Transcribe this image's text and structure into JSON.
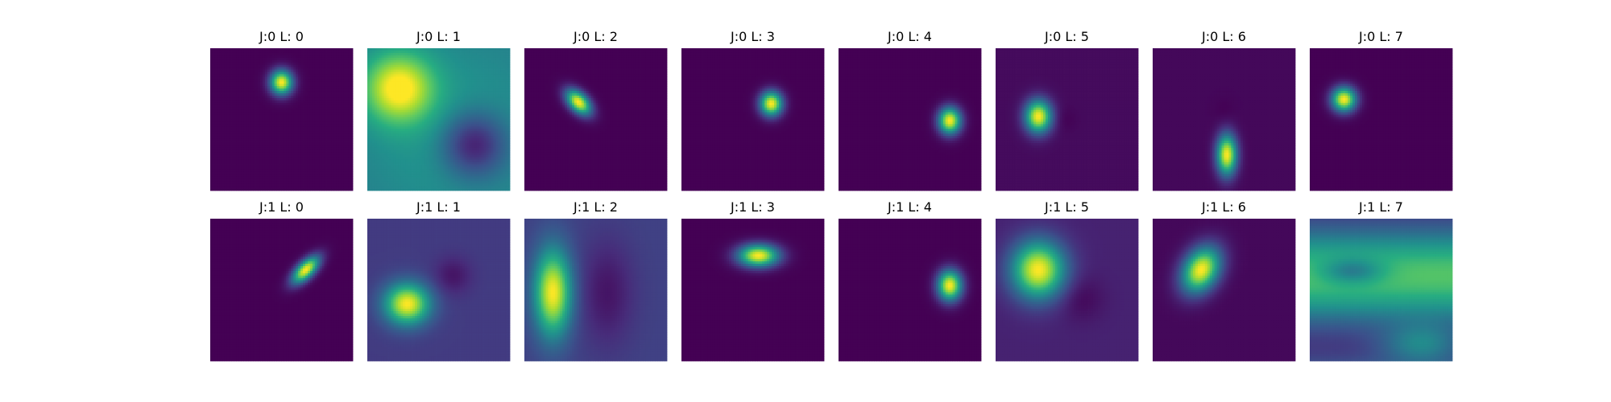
{
  "chart_data": {
    "type": "heatmap",
    "colormap": "viridis",
    "rows": 2,
    "cols": 8,
    "panels": [
      {
        "title": "J:0 L: 0",
        "background": 0.0,
        "blobs": [
          {
            "cx": 0.5,
            "cy": 0.24,
            "sx": 0.055,
            "sy": 0.06,
            "angle": 0,
            "amp": 1.0
          }
        ]
      },
      {
        "title": "J:0 L: 1",
        "background": 0.42,
        "blobs": [
          {
            "cx": 0.22,
            "cy": 0.28,
            "sx": 0.17,
            "sy": 0.17,
            "angle": 0,
            "amp": 0.58
          },
          {
            "cx": 0.6,
            "cy": 0.6,
            "sx": 0.45,
            "sy": 0.45,
            "angle": 0,
            "amp": 0.12
          },
          {
            "cx": 0.75,
            "cy": 0.68,
            "sx": 0.16,
            "sy": 0.16,
            "angle": 0,
            "amp": -0.42
          }
        ]
      },
      {
        "title": "J:0 L: 2",
        "background": 0.0,
        "blobs": [
          {
            "cx": 0.38,
            "cy": 0.38,
            "sx": 0.045,
            "sy": 0.075,
            "angle": -45,
            "amp": 1.0
          }
        ]
      },
      {
        "title": "J:0 L: 3",
        "background": 0.0,
        "blobs": [
          {
            "cx": 0.63,
            "cy": 0.39,
            "sx": 0.055,
            "sy": 0.06,
            "angle": 0,
            "amp": 1.0
          }
        ]
      },
      {
        "title": "J:0 L: 4",
        "background": 0.0,
        "blobs": [
          {
            "cx": 0.78,
            "cy": 0.51,
            "sx": 0.055,
            "sy": 0.065,
            "angle": 0,
            "amp": 1.0
          }
        ]
      },
      {
        "title": "J:0 L: 5",
        "background": 0.03,
        "blobs": [
          {
            "cx": 0.3,
            "cy": 0.48,
            "sx": 0.065,
            "sy": 0.08,
            "angle": 0,
            "amp": 0.97
          },
          {
            "cx": 0.48,
            "cy": 0.5,
            "sx": 0.06,
            "sy": 0.06,
            "angle": 0,
            "amp": -0.03
          }
        ]
      },
      {
        "title": "J:0 L: 6",
        "background": 0.02,
        "blobs": [
          {
            "cx": 0.52,
            "cy": 0.75,
            "sx": 0.05,
            "sy": 0.1,
            "angle": 0,
            "amp": 0.98
          },
          {
            "cx": 0.5,
            "cy": 0.44,
            "sx": 0.05,
            "sy": 0.06,
            "angle": 0,
            "amp": -0.02
          }
        ]
      },
      {
        "title": "J:0 L: 7",
        "background": 0.0,
        "blobs": [
          {
            "cx": 0.24,
            "cy": 0.36,
            "sx": 0.06,
            "sy": 0.06,
            "angle": 0,
            "amp": 1.0
          }
        ]
      },
      {
        "title": "J:1 L: 0",
        "background": 0.0,
        "blobs": [
          {
            "cx": 0.67,
            "cy": 0.36,
            "sx": 0.04,
            "sy": 0.085,
            "angle": 45,
            "amp": 1.0
          }
        ]
      },
      {
        "title": "J:1 L: 1",
        "background": 0.18,
        "blobs": [
          {
            "cx": 0.28,
            "cy": 0.6,
            "sx": 0.11,
            "sy": 0.1,
            "angle": 0,
            "amp": 0.82
          },
          {
            "cx": 0.6,
            "cy": 0.4,
            "sx": 0.09,
            "sy": 0.09,
            "angle": 0,
            "amp": -0.12
          }
        ]
      },
      {
        "title": "J:1 L: 2",
        "background": 0.2,
        "blobs": [
          {
            "cx": 0.2,
            "cy": 0.52,
            "sx": 0.09,
            "sy": 0.21,
            "angle": 0,
            "amp": 0.8
          },
          {
            "cx": 0.58,
            "cy": 0.52,
            "sx": 0.13,
            "sy": 0.25,
            "angle": 0,
            "amp": -0.14
          }
        ]
      },
      {
        "title": "J:1 L: 3",
        "background": 0.0,
        "blobs": [
          {
            "cx": 0.54,
            "cy": 0.26,
            "sx": 0.1,
            "sy": 0.055,
            "angle": 0,
            "amp": 1.0
          }
        ]
      },
      {
        "title": "J:1 L: 4",
        "background": 0.0,
        "blobs": [
          {
            "cx": 0.78,
            "cy": 0.47,
            "sx": 0.06,
            "sy": 0.075,
            "angle": 0,
            "amp": 1.0
          }
        ]
      },
      {
        "title": "J:1 L: 5",
        "background": 0.1,
        "blobs": [
          {
            "cx": 0.3,
            "cy": 0.36,
            "sx": 0.13,
            "sy": 0.14,
            "angle": 0,
            "amp": 0.9
          },
          {
            "cx": 0.6,
            "cy": 0.56,
            "sx": 0.11,
            "sy": 0.11,
            "angle": 0,
            "amp": -0.08
          }
        ]
      },
      {
        "title": "J:1 L: 6",
        "background": 0.02,
        "blobs": [
          {
            "cx": 0.34,
            "cy": 0.36,
            "sx": 0.085,
            "sy": 0.12,
            "angle": 30,
            "amp": 0.98
          }
        ]
      },
      {
        "title": "J:1 L: 7",
        "background": 0.45,
        "waves": true
      }
    ]
  }
}
